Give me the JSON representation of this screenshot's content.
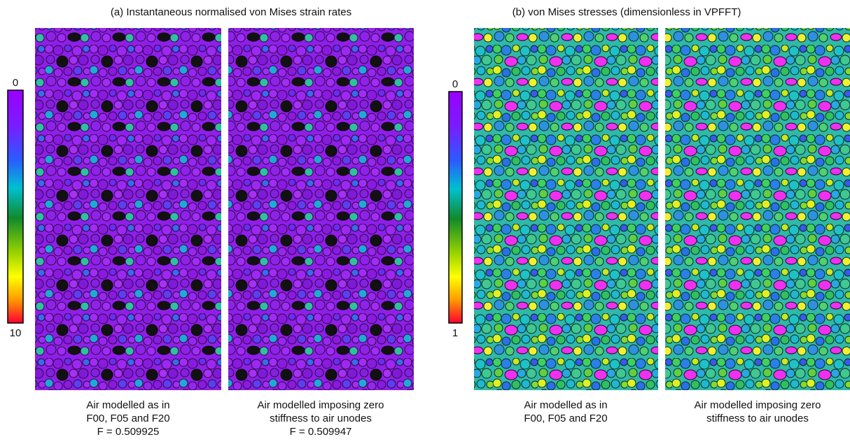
{
  "groups": [
    {
      "title": "(a) Instantaneous normalised von Mises strain rates",
      "colorbar": {
        "top_label": "0",
        "bottom_label": "10"
      },
      "images": [
        {
          "caption": [
            "Air modelled as in",
            "F00, F05 and F20",
            "F = 0.509925"
          ]
        },
        {
          "caption": [
            "Air modelled imposing zero",
            "stiffness to air unodes",
            "F = 0.509947"
          ]
        }
      ]
    },
    {
      "title": "(b) von Mises stresses (dimensionless in VPFFT)",
      "colorbar": {
        "top_label": "0",
        "bottom_label": "1"
      },
      "images": [
        {
          "caption": [
            "Air modelled as in",
            "F00, F05 and F20"
          ]
        },
        {
          "caption": [
            "Air modelled imposing zero",
            "stiffness to air unodes"
          ]
        }
      ]
    }
  ]
}
